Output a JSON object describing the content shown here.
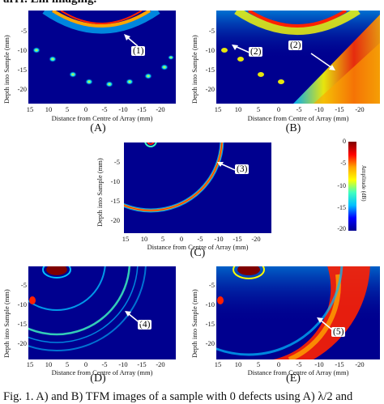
{
  "header_fragment": "arrr. Lm imaging.",
  "axis": {
    "ylabel": "Depth into Sample (mm)",
    "xlabel": "Distance from Centre of Array (mm)",
    "yticks": [
      "-5",
      "-10",
      "-15",
      "-20"
    ],
    "xticks": [
      "15",
      "10",
      "5",
      "0",
      "-5",
      "-10",
      "-15",
      "-20"
    ]
  },
  "panels": {
    "A": {
      "label": "(A)",
      "annotations": [
        "(1)"
      ]
    },
    "B": {
      "label": "(B)",
      "annotations": [
        "(2)",
        "(2)"
      ]
    },
    "C": {
      "label": "(C)",
      "annotations": [
        "(3)"
      ]
    },
    "D": {
      "label": "(D)",
      "annotations": [
        "(4)"
      ]
    },
    "E": {
      "label": "(E)",
      "annotations": [
        "(5)"
      ]
    }
  },
  "colorbar": {
    "title": "Amplitude (dB)",
    "ticks": [
      "0",
      "-5",
      "-10",
      "-15",
      "-20"
    ],
    "colors": [
      "#7f0000",
      "#ff0000",
      "#ffa500",
      "#ffff00",
      "#40ffc0",
      "#00bfff",
      "#0000ff",
      "#00008f"
    ]
  },
  "caption": "Fig. 1.   A) and B) TFM images of a sample with 0 defects using A) λ/2 and"
}
